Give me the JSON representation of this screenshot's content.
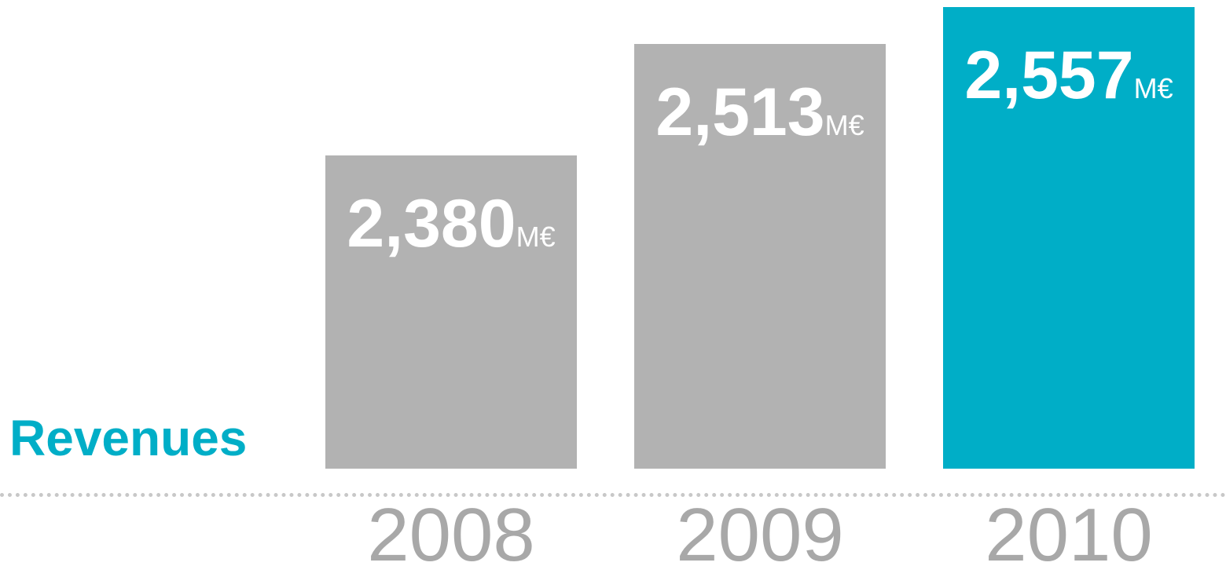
{
  "chart_data": {
    "type": "bar",
    "title": "Revenues",
    "categories": [
      "2008",
      "2009",
      "2010"
    ],
    "values": [
      2380,
      2513,
      2557
    ],
    "value_labels": [
      "2,380",
      "2,513",
      "2,557"
    ],
    "unit": "M€",
    "highlight_index": 2,
    "colors": {
      "bar": "#B2B2B2",
      "highlight": "#00AEC7",
      "title": "#00AEC7",
      "tick": "#A8A8A8",
      "value_label": "#FFFFFF",
      "baseline": "#C8C8C8"
    },
    "grid": false,
    "legend": "none"
  }
}
